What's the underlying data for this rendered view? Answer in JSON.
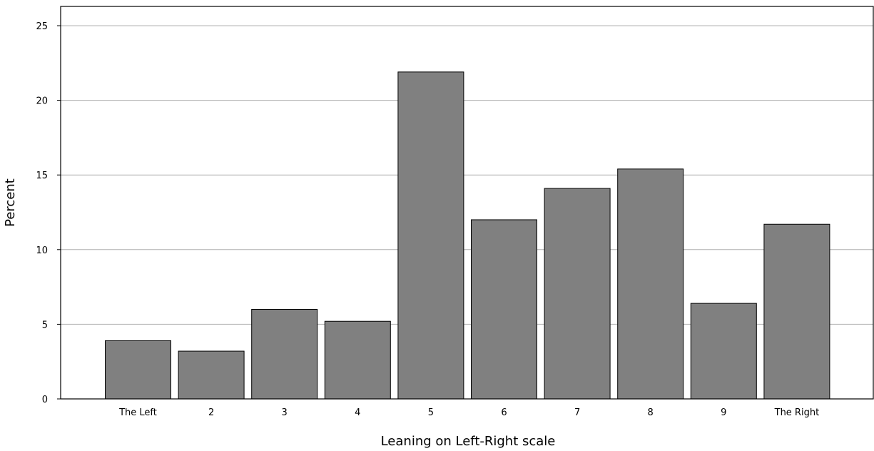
{
  "chart_data": {
    "type": "bar",
    "categories": [
      "The Left",
      "2",
      "3",
      "4",
      "5",
      "6",
      "7",
      "8",
      "9",
      "The Right"
    ],
    "values": [
      3.9,
      3.2,
      6.0,
      5.2,
      21.9,
      12.0,
      14.1,
      15.4,
      6.4,
      11.7
    ],
    "title": "",
    "xlabel": "Leaning on Left-Right scale",
    "ylabel": "Percent",
    "ylim": [
      0,
      26
    ],
    "yticks": [
      0,
      5,
      10,
      15,
      20,
      25
    ],
    "grid": true,
    "bar_color": "#808080"
  }
}
